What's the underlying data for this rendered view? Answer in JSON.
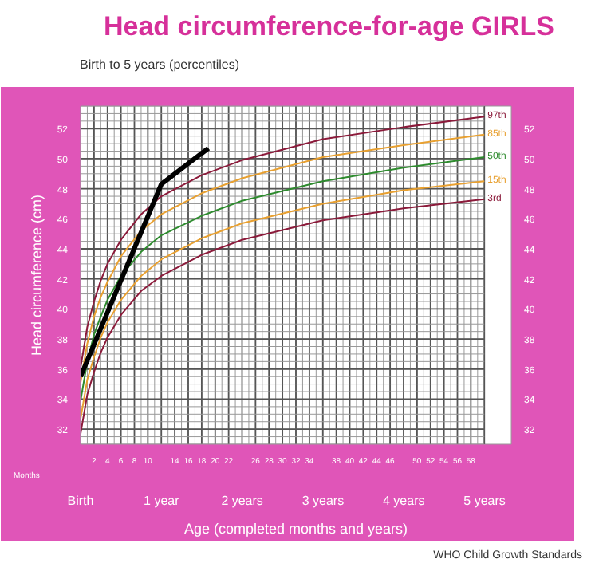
{
  "chart_data": {
    "type": "line",
    "title": "Head circumference-for-age  GIRLS",
    "subtitle": "Birth to 5 years (percentiles)",
    "xlabel": "Age (completed months and years)",
    "ylabel": "Head circumference (cm)",
    "annotations": [
      "Months",
      "WHO Child Growth Standards"
    ],
    "x": [
      0,
      1,
      2,
      3,
      4,
      6,
      9,
      12,
      18,
      24,
      36,
      48,
      60
    ],
    "series": [
      {
        "name": "97th",
        "color": "#8b1a3a",
        "values": [
          36.1,
          38.8,
          40.5,
          41.9,
          43.0,
          44.6,
          46.3,
          47.5,
          48.9,
          49.9,
          51.3,
          52.1,
          52.8
        ]
      },
      {
        "name": "85th",
        "color": "#e8a030",
        "values": [
          35.1,
          37.7,
          39.5,
          40.8,
          41.8,
          43.5,
          45.2,
          46.3,
          47.7,
          48.7,
          50.1,
          50.9,
          51.6
        ]
      },
      {
        "name": "50th",
        "color": "#2e8b2e",
        "values": [
          33.9,
          36.5,
          38.3,
          39.5,
          40.6,
          42.2,
          43.8,
          44.9,
          46.2,
          47.2,
          48.5,
          49.4,
          50.1
        ]
      },
      {
        "name": "15th",
        "color": "#e8a030",
        "values": [
          32.7,
          35.3,
          36.8,
          38.1,
          39.1,
          40.6,
          42.2,
          43.3,
          44.7,
          45.7,
          47.0,
          47.9,
          48.5
        ]
      },
      {
        "name": "3rd",
        "color": "#8b1a3a",
        "values": [
          31.7,
          34.3,
          35.8,
          37.1,
          38.1,
          39.6,
          41.2,
          42.2,
          43.6,
          44.6,
          45.9,
          46.7,
          47.3
        ]
      },
      {
        "color": "#000000",
        "x": [
          0,
          12,
          19
        ],
        "values": [
          35.5,
          48.3,
          50.7
        ]
      }
    ],
    "xlim": [
      0,
      64
    ],
    "ylim": [
      31,
      53.5
    ],
    "xticks": [
      {
        "value": 0,
        "label": null
      },
      2,
      4,
      6,
      8,
      10,
      {
        "value": 12,
        "label": null
      },
      14,
      16,
      18,
      20,
      22,
      {
        "value": 24,
        "label": null
      },
      26,
      28,
      30,
      32,
      34,
      {
        "value": 36,
        "label": null
      },
      38,
      40,
      42,
      44,
      46,
      {
        "value": 48,
        "label": null
      },
      50,
      52,
      54,
      56,
      58,
      {
        "value": 60,
        "label": null
      }
    ],
    "x2lim": [
      0,
      5.33
    ],
    "x2ticks": [
      {
        "value": 0,
        "label": "Birth"
      },
      {
        "value": 1,
        "label": "1 year"
      },
      {
        "value": 2,
        "label": "2 years"
      },
      {
        "value": 3,
        "label": "3 years"
      },
      {
        "value": 4,
        "label": "4 years"
      },
      {
        "value": 5,
        "label": "5 years"
      }
    ],
    "yticks": [
      32,
      34,
      36,
      38,
      40,
      42,
      44,
      46,
      48,
      50,
      52
    ],
    "y2lim": [
      31,
      53.5
    ],
    "y2ticks": [
      32,
      34,
      36,
      38,
      40,
      42,
      44,
      46,
      48,
      50,
      52
    ],
    "grid": true,
    "marker": "none",
    "line_style": "solid"
  }
}
